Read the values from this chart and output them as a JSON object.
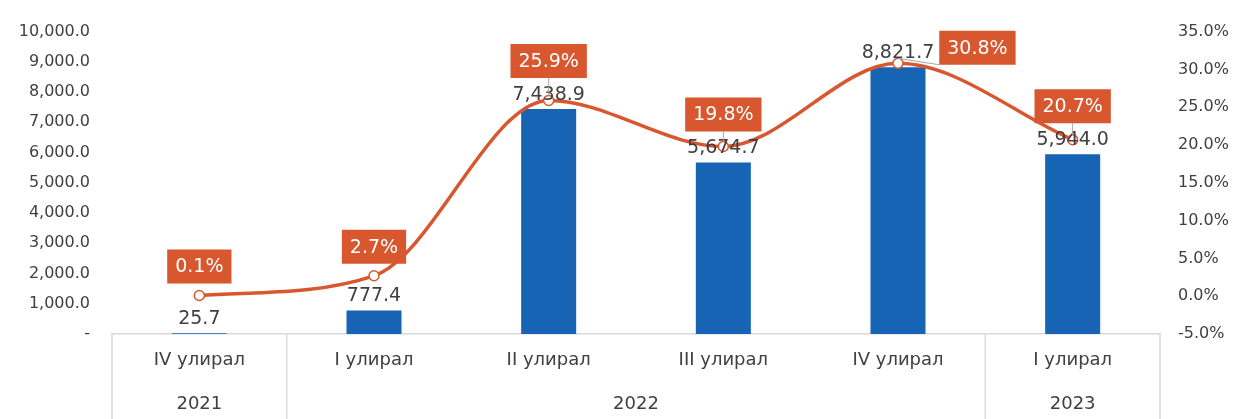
{
  "chart_data": {
    "type": "bar",
    "categories": [
      "IV улирал",
      "I улирал",
      "II улирал",
      "III улирал",
      "IV улирал",
      "I улирал"
    ],
    "series": [
      {
        "color": "#1764b4",
        "values": [
          25.7,
          777.4,
          7438.9,
          5674.7,
          8821.7,
          5944.0
        ],
        "value_labels": [
          "25.7",
          "777.4",
          "7,438.9",
          "5,674.7",
          "8,821.7",
          "5,944.0"
        ]
      },
      {
        "type": "line",
        "axis": "y2",
        "color": "#d8572e",
        "values": [
          0.1,
          2.7,
          25.9,
          19.8,
          30.8,
          20.7
        ],
        "value_labels": [
          "0.1%",
          "2.7%",
          "25.9%",
          "19.8%",
          "30.8%",
          "20.7%"
        ]
      }
    ],
    "ylim": [
      0,
      10000
    ],
    "yticks": [
      {
        "value": 0,
        "label": "-"
      },
      {
        "value": 1000,
        "label": "1,000.0"
      },
      {
        "value": 2000,
        "label": "2,000.0"
      },
      {
        "value": 3000,
        "label": "3,000.0"
      },
      {
        "value": 4000,
        "label": "4,000.0"
      },
      {
        "value": 5000,
        "label": "5,000.0"
      },
      {
        "value": 6000,
        "label": "6,000.0"
      },
      {
        "value": 7000,
        "label": "7,000.0"
      },
      {
        "value": 8000,
        "label": "8,000.0"
      },
      {
        "value": 9000,
        "label": "9,000.0"
      },
      {
        "value": 10000,
        "label": "10,000.0"
      }
    ],
    "y2lim": [
      -5,
      35
    ],
    "y2ticks": [
      {
        "value": -5,
        "label": "-5.0%"
      },
      {
        "value": 0,
        "label": "0.0%"
      },
      {
        "value": 5,
        "label": "5.0%"
      },
      {
        "value": 10,
        "label": "10.0%"
      },
      {
        "value": 15,
        "label": "15.0%"
      },
      {
        "value": 20,
        "label": "20.0%"
      },
      {
        "value": 25,
        "label": "25.0%"
      },
      {
        "value": 30,
        "label": "30.0%"
      },
      {
        "value": 35,
        "label": "35.0%"
      }
    ],
    "annotations": [
      "2021",
      "2022",
      "2023"
    ],
    "marker": "circle"
  }
}
